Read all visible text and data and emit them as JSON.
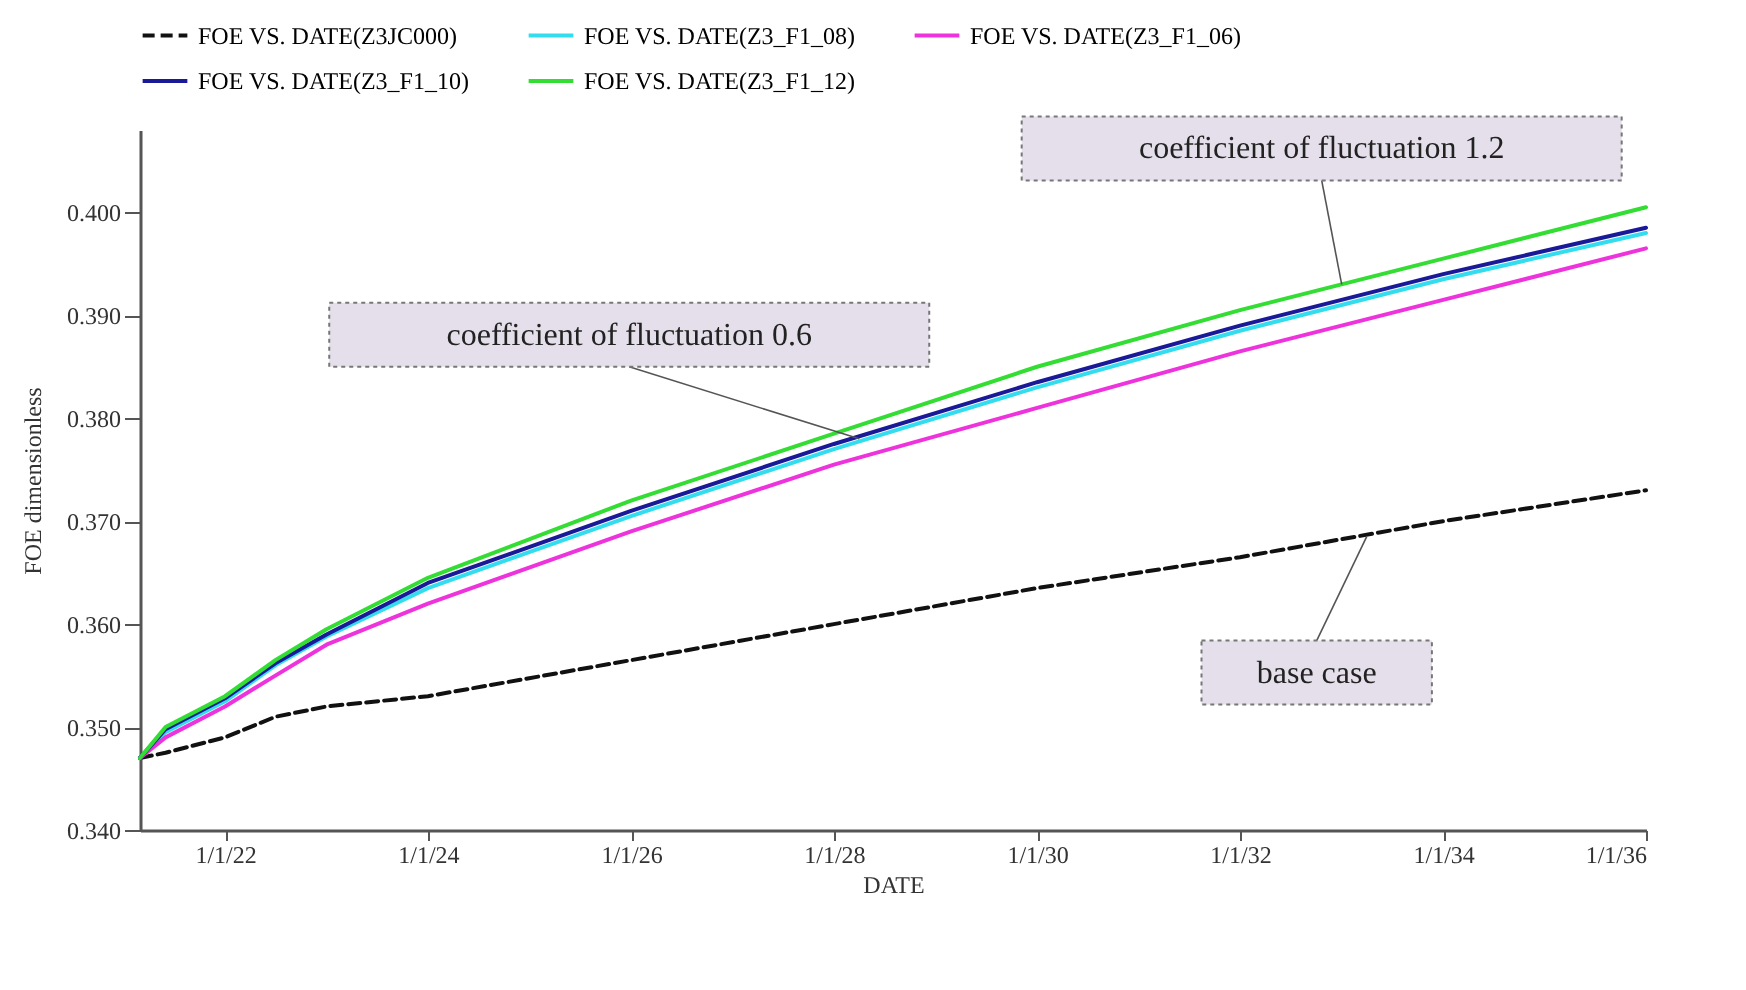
{
  "chart_data": {
    "type": "line",
    "xlabel": "DATE",
    "ylabel": "FOE dimensionless",
    "x": [
      "2021-03-01",
      "2021-06-01",
      "2022-01-01",
      "2022-07-01",
      "2023-01-01",
      "2024-01-01",
      "2026-01-01",
      "2028-01-01",
      "2030-01-01",
      "2032-01-01",
      "2034-01-01",
      "2036-01-01"
    ],
    "series": [
      {
        "name": "FOE VS. DATE(Z3JC000)",
        "color": "#111111",
        "line_style": "dashed",
        "values": [
          0.347,
          0.3475,
          0.349,
          0.351,
          0.352,
          0.353,
          0.3565,
          0.36,
          0.3635,
          0.3665,
          0.37,
          0.373
        ]
      },
      {
        "name": "FOE VS. DATE(Z3_F1_08)",
        "color": "#33ddee",
        "values": [
          0.347,
          0.3495,
          0.3525,
          0.356,
          0.3588,
          0.3635,
          0.3705,
          0.377,
          0.383,
          0.3885,
          0.3935,
          0.398
        ]
      },
      {
        "name": "FOE VS. DATE(Z3_F1_06)",
        "color": "#ee33dd",
        "values": [
          0.347,
          0.349,
          0.352,
          0.355,
          0.358,
          0.362,
          0.369,
          0.3755,
          0.381,
          0.3865,
          0.3915,
          0.3965
        ]
      },
      {
        "name": "FOE VS. DATE(Z3_F1_10)",
        "color": "#1a1a99",
        "values": [
          0.347,
          0.3498,
          0.3528,
          0.3562,
          0.359,
          0.364,
          0.371,
          0.3775,
          0.3835,
          0.389,
          0.394,
          0.3985
        ]
      },
      {
        "name": "FOE VS. DATE(Z3_F1_12)",
        "color": "#33dd33",
        "values": [
          0.347,
          0.35,
          0.353,
          0.3565,
          0.3595,
          0.3645,
          0.372,
          0.3785,
          0.385,
          0.3905,
          0.3955,
          0.4005
        ]
      }
    ],
    "xlim": [
      "2021-03-01",
      "2036-01-01"
    ],
    "xticks": [
      {
        "value": "2022-01-01",
        "label": "1/1/22"
      },
      {
        "value": "2024-01-01",
        "label": "1/1/24"
      },
      {
        "value": "2026-01-01",
        "label": "1/1/26"
      },
      {
        "value": "2028-01-01",
        "label": "1/1/28"
      },
      {
        "value": "2030-01-01",
        "label": "1/1/30"
      },
      {
        "value": "2032-01-01",
        "label": "1/1/32"
      },
      {
        "value": "2034-01-01",
        "label": "1/1/34"
      },
      {
        "value": "2036-01-01",
        "label": "1/1/36"
      }
    ],
    "ylim": [
      0.34,
      0.408
    ],
    "yticks": [
      {
        "value": 0.34,
        "label": "0.340"
      },
      {
        "value": 0.35,
        "label": "0.350"
      },
      {
        "value": 0.36,
        "label": "0.360"
      },
      {
        "value": 0.37,
        "label": "0.370"
      },
      {
        "value": 0.38,
        "label": "0.380"
      },
      {
        "value": 0.39,
        "label": "0.390"
      },
      {
        "value": 0.4,
        "label": "0.400"
      }
    ],
    "annotations": [
      {
        "text": "coefficient of fluctuation 1.2",
        "x": "2033-01-01",
        "y": 0.393
      },
      {
        "text": "coefficient of fluctuation 0.6",
        "x": "2028-04-01",
        "y": 0.378
      },
      {
        "text": "base case",
        "x": "2033-04-01",
        "y": 0.3685
      }
    ],
    "legend": "top",
    "grid": false
  }
}
